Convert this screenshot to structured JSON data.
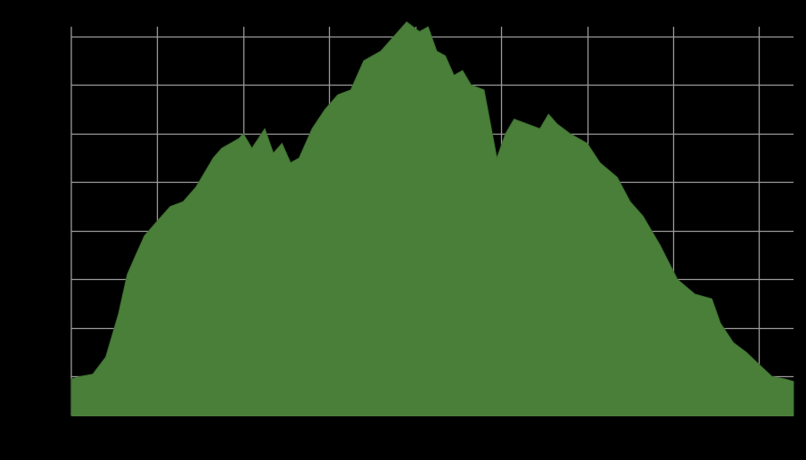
{
  "chart_data": {
    "type": "area",
    "title": "",
    "xlabel": "",
    "ylabel": "",
    "grid": true,
    "colors": {
      "background": "#000000",
      "fill": "#4a7f39",
      "stroke": "#3f6f30",
      "grid": "#9a9a9a"
    },
    "xlim": [
      0,
      8.4
    ],
    "ylim": [
      0,
      8.0
    ],
    "x_grid": [
      1,
      2,
      3,
      4,
      5,
      6,
      7,
      8
    ],
    "y_grid": [
      0.8,
      1.8,
      2.8,
      3.8,
      4.8,
      5.8,
      6.8,
      7.8
    ],
    "x": [
      0,
      0.1,
      0.25,
      0.4,
      0.55,
      0.65,
      0.75,
      0.85,
      1.0,
      1.15,
      1.3,
      1.45,
      1.55,
      1.65,
      1.75,
      1.95,
      2.0,
      2.1,
      2.25,
      2.35,
      2.45,
      2.55,
      2.65,
      2.8,
      2.95,
      3.1,
      3.25,
      3.4,
      3.6,
      3.75,
      3.9,
      4.05,
      4.15,
      4.25,
      4.35,
      4.45,
      4.55,
      4.65,
      4.8,
      4.95,
      5.05,
      5.15,
      5.3,
      5.45,
      5.55,
      5.65,
      5.8,
      6.0,
      6.15,
      6.35,
      6.5,
      6.65,
      6.85,
      7.05,
      7.25,
      7.45,
      7.55,
      7.7,
      7.85,
      8.0,
      8.15,
      8.3,
      8.4
    ],
    "values": [
      0.75,
      0.8,
      0.85,
      1.2,
      2.1,
      2.9,
      3.3,
      3.7,
      4.0,
      4.3,
      4.4,
      4.7,
      5.0,
      5.3,
      5.5,
      5.7,
      5.8,
      5.5,
      5.9,
      5.4,
      5.6,
      5.2,
      5.3,
      5.9,
      6.3,
      6.6,
      6.7,
      7.3,
      7.5,
      7.8,
      8.1,
      7.9,
      8.0,
      7.5,
      7.4,
      7.0,
      7.1,
      6.8,
      6.7,
      5.3,
      5.8,
      6.1,
      6.0,
      5.9,
      6.2,
      6.0,
      5.8,
      5.6,
      5.2,
      4.9,
      4.4,
      4.1,
      3.5,
      2.8,
      2.5,
      2.4,
      1.9,
      1.5,
      1.3,
      1.05,
      0.8,
      0.75,
      0.7
    ]
  }
}
